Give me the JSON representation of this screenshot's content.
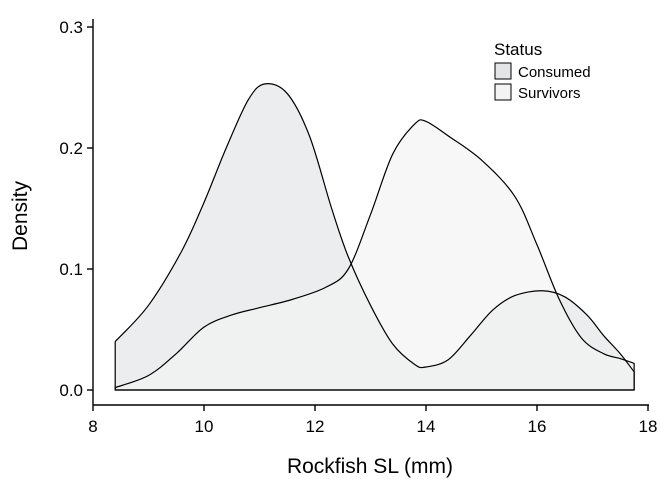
{
  "chart_data": {
    "type": "area",
    "title": "",
    "xlabel": "Rockfish SL (mm)",
    "ylabel": "Density",
    "xlim": [
      8,
      18
    ],
    "ylim": [
      0,
      0.3
    ],
    "xticks": [
      "8",
      "10",
      "12",
      "14",
      "16",
      "18"
    ],
    "xtick_values": [
      8,
      10,
      12,
      14,
      16,
      18
    ],
    "yticks": [
      "0.0",
      "0.1",
      "0.2",
      "0.3"
    ],
    "ytick_values": [
      0.0,
      0.1,
      0.2,
      0.3
    ],
    "grid": false,
    "legend": {
      "title": "Status",
      "placement": "top-right",
      "entries": [
        "Consumed",
        "Survivors"
      ]
    },
    "series": [
      {
        "name": "Consumed",
        "fill": "#e4e5e7",
        "points": [
          [
            8.4,
            0.04
          ],
          [
            9.0,
            0.07
          ],
          [
            9.6,
            0.115
          ],
          [
            10.0,
            0.155
          ],
          [
            10.4,
            0.2
          ],
          [
            10.8,
            0.24
          ],
          [
            11.1,
            0.253
          ],
          [
            11.5,
            0.245
          ],
          [
            11.9,
            0.21
          ],
          [
            12.3,
            0.15
          ],
          [
            12.6,
            0.11
          ],
          [
            13.0,
            0.07
          ],
          [
            13.4,
            0.038
          ],
          [
            13.8,
            0.021
          ],
          [
            14.0,
            0.019
          ],
          [
            14.4,
            0.025
          ],
          [
            14.8,
            0.045
          ],
          [
            15.2,
            0.066
          ],
          [
            15.6,
            0.078
          ],
          [
            16.1,
            0.082
          ],
          [
            16.5,
            0.077
          ],
          [
            16.9,
            0.062
          ],
          [
            17.2,
            0.045
          ],
          [
            17.5,
            0.03
          ],
          [
            17.75,
            0.015
          ]
        ]
      },
      {
        "name": "Survivors",
        "fill": "#f2f3f2",
        "points": [
          [
            8.4,
            0.002
          ],
          [
            9.0,
            0.012
          ],
          [
            9.5,
            0.03
          ],
          [
            10.0,
            0.052
          ],
          [
            10.5,
            0.062
          ],
          [
            11.0,
            0.068
          ],
          [
            11.6,
            0.075
          ],
          [
            12.2,
            0.085
          ],
          [
            12.6,
            0.1
          ],
          [
            13.0,
            0.145
          ],
          [
            13.4,
            0.195
          ],
          [
            13.8,
            0.22
          ],
          [
            14.0,
            0.222
          ],
          [
            14.4,
            0.21
          ],
          [
            15.0,
            0.19
          ],
          [
            15.6,
            0.16
          ],
          [
            16.0,
            0.12
          ],
          [
            16.4,
            0.075
          ],
          [
            16.8,
            0.043
          ],
          [
            17.2,
            0.03
          ],
          [
            17.5,
            0.026
          ],
          [
            17.75,
            0.022
          ]
        ]
      }
    ]
  }
}
